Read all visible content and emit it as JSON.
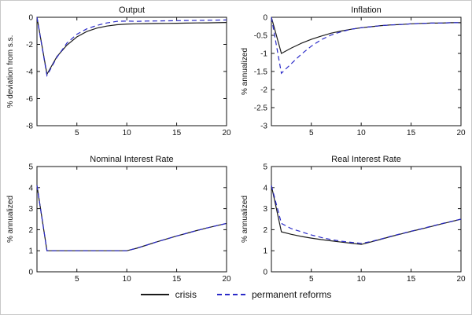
{
  "legend": [
    {
      "label": "crisis",
      "color": "#1a1a1a",
      "style": "solid"
    },
    {
      "label": "permanent reforms",
      "color": "#2a2ac8",
      "style": "dashed"
    }
  ],
  "chart_data": [
    {
      "type": "line",
      "title": "Output",
      "xlabel": "",
      "ylabel": "% deviation from s.s.",
      "xlim": [
        1,
        20
      ],
      "ylim": [
        -8,
        0
      ],
      "xticks": [
        5,
        10,
        15,
        20
      ],
      "yticks": [
        0,
        -2,
        -4,
        -6,
        -8
      ],
      "grid": false,
      "x": [
        1,
        2,
        3,
        4,
        5,
        6,
        7,
        8,
        9,
        10,
        11,
        12,
        13,
        14,
        15,
        16,
        17,
        18,
        19,
        20
      ],
      "series": [
        {
          "name": "crisis",
          "color": "#1a1a1a",
          "dash": null,
          "values": [
            0,
            -4.2,
            -2.9,
            -2.05,
            -1.45,
            -1.05,
            -0.8,
            -0.65,
            -0.55,
            -0.5,
            -0.48,
            -0.47,
            -0.46,
            -0.45,
            -0.44,
            -0.43,
            -0.42,
            -0.41,
            -0.4,
            -0.38
          ]
        },
        {
          "name": "permanent reforms",
          "color": "#2a2ac8",
          "dash": "6,4",
          "values": [
            0,
            -4.3,
            -2.95,
            -1.9,
            -1.25,
            -0.85,
            -0.6,
            -0.42,
            -0.3,
            -0.28,
            -0.3,
            -0.28,
            -0.27,
            -0.26,
            -0.25,
            -0.24,
            -0.23,
            -0.22,
            -0.21,
            -0.2
          ]
        }
      ]
    },
    {
      "type": "line",
      "title": "Inflation",
      "xlabel": "",
      "ylabel": "% annualized",
      "xlim": [
        1,
        20
      ],
      "ylim": [
        -3,
        0
      ],
      "xticks": [
        5,
        10,
        15,
        20
      ],
      "yticks": [
        0,
        -0.5,
        -1,
        -1.5,
        -2,
        -2.5,
        -3
      ],
      "grid": false,
      "x": [
        1,
        2,
        3,
        4,
        5,
        6,
        7,
        8,
        9,
        10,
        11,
        12,
        13,
        14,
        15,
        16,
        17,
        18,
        19,
        20
      ],
      "series": [
        {
          "name": "crisis",
          "color": "#1a1a1a",
          "dash": null,
          "values": [
            0,
            -1.0,
            -0.85,
            -0.72,
            -0.61,
            -0.52,
            -0.44,
            -0.38,
            -0.33,
            -0.29,
            -0.26,
            -0.23,
            -0.21,
            -0.2,
            -0.18,
            -0.17,
            -0.16,
            -0.16,
            -0.15,
            -0.15
          ]
        },
        {
          "name": "permanent reforms",
          "color": "#2a2ac8",
          "dash": "6,4",
          "values": [
            0,
            -1.55,
            -1.28,
            -1.02,
            -0.8,
            -0.62,
            -0.49,
            -0.4,
            -0.33,
            -0.29,
            -0.26,
            -0.23,
            -0.21,
            -0.2,
            -0.18,
            -0.17,
            -0.16,
            -0.16,
            -0.15,
            -0.15
          ]
        }
      ]
    },
    {
      "type": "line",
      "title": "Nominal Interest Rate",
      "xlabel": "",
      "ylabel": "% annualized",
      "xlim": [
        1,
        20
      ],
      "ylim": [
        0,
        5
      ],
      "xticks": [
        5,
        10,
        15,
        20
      ],
      "yticks": [
        0,
        1,
        2,
        3,
        4,
        5
      ],
      "grid": false,
      "x": [
        1,
        2,
        3,
        4,
        5,
        6,
        7,
        8,
        9,
        10,
        11,
        12,
        13,
        14,
        15,
        16,
        17,
        18,
        19,
        20
      ],
      "series": [
        {
          "name": "crisis",
          "color": "#1a1a1a",
          "dash": null,
          "values": [
            4.1,
            1.0,
            1.0,
            1.0,
            1.0,
            1.0,
            1.0,
            1.0,
            1.0,
            1.0,
            1.12,
            1.27,
            1.42,
            1.56,
            1.7,
            1.83,
            1.96,
            2.08,
            2.19,
            2.3
          ]
        },
        {
          "name": "permanent reforms",
          "color": "#2a2ac8",
          "dash": "6,4",
          "values": [
            4.1,
            1.0,
            1.0,
            1.0,
            1.0,
            1.0,
            1.0,
            1.0,
            1.0,
            1.0,
            1.12,
            1.27,
            1.42,
            1.56,
            1.7,
            1.83,
            1.96,
            2.08,
            2.19,
            2.3
          ]
        }
      ]
    },
    {
      "type": "line",
      "title": "Real Interest Rate",
      "xlabel": "",
      "ylabel": "% annualized",
      "xlim": [
        1,
        20
      ],
      "ylim": [
        0,
        5
      ],
      "xticks": [
        5,
        10,
        15,
        20
      ],
      "yticks": [
        0,
        1,
        2,
        3,
        4,
        5
      ],
      "grid": false,
      "x": [
        1,
        2,
        3,
        4,
        5,
        6,
        7,
        8,
        9,
        10,
        11,
        12,
        13,
        14,
        15,
        16,
        17,
        18,
        19,
        20
      ],
      "series": [
        {
          "name": "crisis",
          "color": "#1a1a1a",
          "dash": null,
          "values": [
            4.1,
            1.9,
            1.78,
            1.68,
            1.6,
            1.53,
            1.47,
            1.41,
            1.36,
            1.3,
            1.42,
            1.55,
            1.68,
            1.8,
            1.92,
            2.03,
            2.15,
            2.27,
            2.38,
            2.5
          ]
        },
        {
          "name": "permanent reforms",
          "color": "#2a2ac8",
          "dash": "6,4",
          "values": [
            4.1,
            2.3,
            2.05,
            1.9,
            1.75,
            1.63,
            1.53,
            1.45,
            1.4,
            1.35,
            1.44,
            1.56,
            1.69,
            1.81,
            1.93,
            2.04,
            2.16,
            2.28,
            2.39,
            2.5
          ]
        }
      ]
    }
  ]
}
